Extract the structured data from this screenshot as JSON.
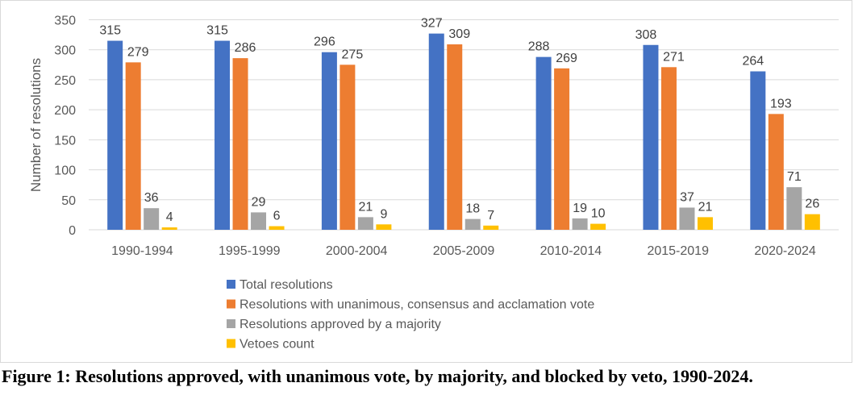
{
  "chart_data": {
    "type": "bar",
    "title": "",
    "xlabel": "",
    "ylabel": "Number of resolutions",
    "ylim": [
      0,
      350
    ],
    "yticks": [
      0,
      50,
      100,
      150,
      200,
      250,
      300,
      350
    ],
    "grid": true,
    "legend_position": "bottom",
    "categories": [
      "1990-1994",
      "1995-1999",
      "2000-2004",
      "2005-2009",
      "2010-2014",
      "2015-2019",
      "2020-2024"
    ],
    "series": [
      {
        "name": "Total resolutions",
        "color": "#4472c4",
        "values": [
          315,
          315,
          296,
          327,
          288,
          308,
          264
        ]
      },
      {
        "name": "Resolutions with unanimous, consensus and acclamation vote",
        "color": "#ed7d31",
        "values": [
          279,
          286,
          275,
          309,
          269,
          271,
          193
        ]
      },
      {
        "name": "Resolutions approved by a majority",
        "color": "#a5a5a5",
        "values": [
          36,
          29,
          21,
          18,
          19,
          37,
          71
        ]
      },
      {
        "name": "Vetoes count",
        "color": "#ffc000",
        "values": [
          4,
          6,
          9,
          7,
          10,
          21,
          26
        ]
      }
    ]
  },
  "caption": {
    "text": "Figure 1: Resolutions approved, with unanimous vote, by majority, and blocked by veto, 1990-2024."
  }
}
